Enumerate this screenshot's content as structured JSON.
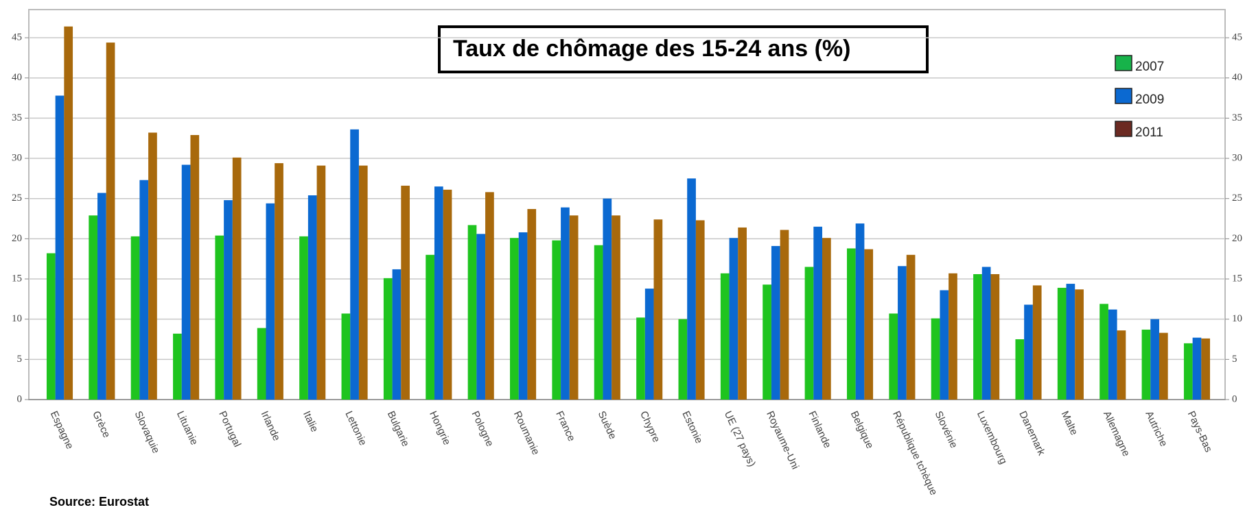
{
  "chart_data": {
    "type": "bar",
    "title": "Taux de chômage des 15-24 ans (%)",
    "source": "Source: Eurostat",
    "categories": [
      "Espagne",
      "Grèce",
      "Slovaquie",
      "Lituanie",
      "Portugal",
      "Irlande",
      "Italie",
      "Lettonie",
      "Bulgarie",
      "Hongrie",
      "Pologne",
      "Roumanie",
      "France",
      "Suède",
      "Chypre",
      "Estonie",
      "UE (27 pays)",
      "Royaume-Uni",
      "Finlande",
      "Belgique",
      "République tchèque",
      "Slovénie",
      "Luxembourg",
      "Danemark",
      "Malte",
      "Allemagne",
      "Autriche",
      "Pays-Bas"
    ],
    "series": [
      {
        "name": "2007",
        "color": "#1fc41f",
        "legend_color": "#17b34a",
        "values": [
          18.2,
          22.9,
          20.3,
          8.2,
          20.4,
          8.9,
          20.3,
          10.7,
          15.1,
          18.0,
          21.7,
          20.1,
          19.8,
          19.2,
          10.2,
          10.0,
          15.7,
          14.3,
          16.5,
          18.8,
          10.7,
          10.1,
          15.6,
          7.5,
          13.9,
          11.9,
          8.7,
          7.0
        ]
      },
      {
        "name": "2009",
        "color": "#0b69d1",
        "legend_color": "#0b69d1",
        "values": [
          37.8,
          25.7,
          27.3,
          29.2,
          24.8,
          24.4,
          25.4,
          33.6,
          16.2,
          26.5,
          20.6,
          20.8,
          23.9,
          25.0,
          13.8,
          27.5,
          20.1,
          19.1,
          21.5,
          21.9,
          16.6,
          13.6,
          16.5,
          11.8,
          14.4,
          11.2,
          10.0,
          7.7
        ]
      },
      {
        "name": "2011",
        "color": "#a8690c",
        "legend_color": "#6b2a22",
        "values": [
          46.4,
          44.4,
          33.2,
          32.9,
          30.1,
          29.4,
          29.1,
          29.1,
          26.6,
          26.1,
          25.8,
          23.7,
          22.9,
          22.9,
          22.4,
          22.3,
          21.4,
          21.1,
          20.1,
          18.7,
          18.0,
          15.7,
          15.6,
          14.2,
          13.7,
          8.6,
          8.3,
          7.6
        ]
      }
    ],
    "ylim": [
      0,
      48.5
    ],
    "yticks": [
      0,
      5,
      10,
      15,
      20,
      25,
      30,
      35,
      40,
      45
    ],
    "grid": true
  }
}
